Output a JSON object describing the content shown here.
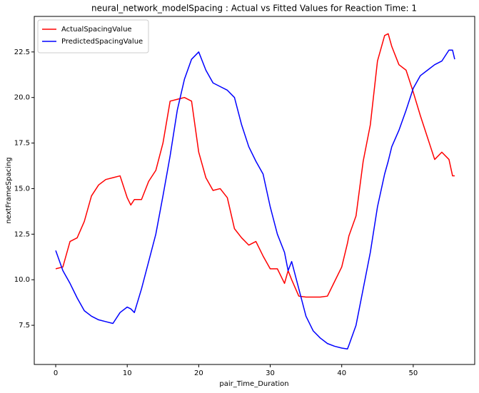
{
  "chart_data": {
    "type": "line",
    "title": "neural_network_modelSpacing : Actual vs Fitted Values for Reaction Time: 1",
    "x_label": "pair_Time_Duration",
    "y_label": "nextFrameSpacing",
    "x": [
      0,
      1,
      2,
      3,
      4,
      5,
      6,
      7,
      8,
      9,
      10,
      10.5,
      11,
      12,
      13,
      14,
      15,
      16,
      17,
      18,
      19,
      20,
      21,
      22,
      23,
      24,
      25,
      26,
      27,
      28,
      29,
      30,
      31,
      32,
      32.5,
      33,
      34,
      35,
      36,
      37,
      38,
      39,
      40,
      40.8,
      41,
      42,
      43,
      44,
      45,
      46,
      46.5,
      47,
      48,
      49,
      50,
      51,
      52,
      53,
      54,
      55,
      55.5,
      55.8
    ],
    "series": [
      {
        "name": "ActualSpacingValue",
        "color": "#ff0000",
        "values": [
          10.6,
          10.7,
          12.1,
          12.3,
          13.2,
          14.6,
          15.2,
          15.5,
          15.6,
          15.7,
          14.5,
          14.1,
          14.4,
          14.4,
          15.4,
          16.0,
          17.5,
          19.8,
          19.9,
          20.0,
          19.8,
          17.0,
          15.6,
          14.9,
          15.0,
          14.5,
          12.8,
          12.3,
          11.9,
          12.1,
          11.3,
          10.6,
          10.6,
          9.8,
          10.5,
          10.0,
          9.1,
          9.05,
          9.05,
          9.05,
          9.1,
          9.9,
          10.7,
          12.0,
          12.4,
          13.5,
          16.5,
          18.5,
          22.0,
          23.4,
          23.5,
          22.8,
          21.8,
          21.5,
          20.3,
          19.0,
          17.8,
          16.6,
          17.0,
          16.6,
          15.7,
          15.7
        ]
      },
      {
        "name": "PredictedSpacingValue",
        "color": "#0000ff",
        "values": [
          11.6,
          10.5,
          9.8,
          9.0,
          8.3,
          8.0,
          7.8,
          7.7,
          7.6,
          8.2,
          8.5,
          8.4,
          8.2,
          9.5,
          11.0,
          12.5,
          14.6,
          16.8,
          19.3,
          21.0,
          22.1,
          22.5,
          21.5,
          20.8,
          20.6,
          20.4,
          20.0,
          18.5,
          17.3,
          16.5,
          15.8,
          14.0,
          12.5,
          11.5,
          10.5,
          11.0,
          9.5,
          8.0,
          7.2,
          6.8,
          6.5,
          6.35,
          6.25,
          6.2,
          6.4,
          7.5,
          9.5,
          11.5,
          14.0,
          15.8,
          16.5,
          17.3,
          18.2,
          19.3,
          20.5,
          21.2,
          21.5,
          21.8,
          22.0,
          22.6,
          22.6,
          22.1
        ]
      }
    ],
    "xlim": [
      -3,
      58.6
    ],
    "ylim": [
      5.35,
      24.45
    ],
    "xticks": [
      0,
      10,
      20,
      30,
      40,
      50
    ],
    "yticks": [
      7.5,
      {
        "value": 10,
        "label": "10.0"
      },
      12.5,
      {
        "value": 15,
        "label": "15.0"
      },
      17.5,
      {
        "value": 20,
        "label": "20.0"
      },
      22.5
    ],
    "legend": "upper left"
  }
}
